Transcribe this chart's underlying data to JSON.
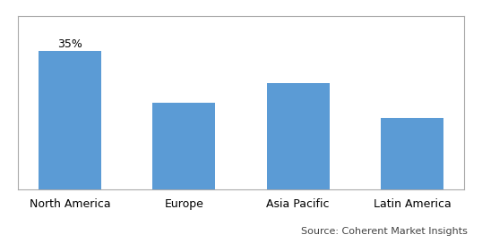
{
  "categories": [
    "North America",
    "Europe",
    "Asia Pacific",
    "Latin America"
  ],
  "values": [
    35,
    22,
    27,
    18
  ],
  "bar_color": "#5B9BD5",
  "annotation_text": "35%",
  "annotation_bar_index": 0,
  "source_text": "Source: Coherent Market Insights",
  "ylim": [
    0,
    44
  ],
  "bar_width": 0.55,
  "grid_color": "#D9D9D9",
  "background_color": "#FFFFFF",
  "tick_fontsize": 9,
  "annotation_fontsize": 9,
  "source_fontsize": 8,
  "border_color": "#AAAAAA"
}
